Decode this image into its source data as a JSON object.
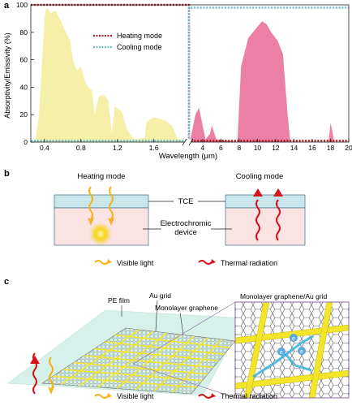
{
  "panels": {
    "a": "a",
    "b": "b",
    "c": "c"
  },
  "panel_a": {
    "ylabel": "Absorptivity/Emissivity (%)",
    "xlabel": "Wavelength (μm)",
    "yticks": [
      "0",
      "20",
      "40",
      "60",
      "80",
      "100"
    ],
    "xticks_left": [
      "0.4",
      "0.8",
      "1.2",
      "1.6"
    ],
    "xticks_right": [
      "4",
      "6",
      "8",
      "10",
      "12",
      "14",
      "16",
      "18",
      "20"
    ],
    "legend": {
      "heating": "Heating mode",
      "cooling": "Cooling mode"
    }
  },
  "colors": {
    "heating": "#b01e2a",
    "cooling": "#6dbfd0",
    "solar_fill": "#f5efa8",
    "thermal_fill": "#ec7fa6",
    "tce": "#c9e6ea",
    "device": "#fbe3e3",
    "light": "#f5b21a",
    "thermal": "#d6111b",
    "au": "#f2e52a"
  },
  "panel_b": {
    "heating_title": "Heating mode",
    "cooling_title": "Cooling mode",
    "tce_label": "TCE",
    "device_label_1": "Electrochromic",
    "device_label_2": "device",
    "legend_visible": "Visible light",
    "legend_thermal": "Thermal radiation"
  },
  "panel_c": {
    "pe_film": "PE film",
    "au_grid": "Au grid",
    "graphene": "Monolayer graphene",
    "inset_title": "Monolayer graphene/Au grid",
    "legend_visible": "Visible light",
    "legend_thermal": "Thermal radiation",
    "electron_label": "e"
  },
  "chart_data": {
    "type": "area",
    "xlabel": "Wavelength (μm)",
    "ylabel": "Absorptivity/Emissivity (%)",
    "ylim": [
      0,
      100
    ],
    "x_axis_broken": true,
    "xlim_segments": [
      [
        0.25,
        1.95
      ],
      [
        2.5,
        20
      ]
    ],
    "legend_position": "top-left",
    "grid": false,
    "series": [
      {
        "name": "Heating mode",
        "style": "dashed",
        "points": [
          [
            0.25,
            100
          ],
          [
            2.5,
            100
          ],
          [
            2.5,
            1
          ],
          [
            20,
            1
          ]
        ]
      },
      {
        "name": "Cooling mode",
        "style": "dashed",
        "points": [
          [
            0.25,
            1
          ],
          [
            2.5,
            1
          ],
          [
            2.5,
            98
          ],
          [
            20,
            98
          ]
        ]
      }
    ],
    "filled_spectra": [
      {
        "region": "solar",
        "points": [
          [
            0.3,
            0
          ],
          [
            0.34,
            20
          ],
          [
            0.4,
            90
          ],
          [
            0.42,
            98
          ],
          [
            0.47,
            94
          ],
          [
            0.52,
            96
          ],
          [
            0.58,
            88
          ],
          [
            0.62,
            82
          ],
          [
            0.68,
            74
          ],
          [
            0.72,
            58
          ],
          [
            0.76,
            52
          ],
          [
            0.8,
            55
          ],
          [
            0.84,
            45
          ],
          [
            0.88,
            40
          ],
          [
            0.92,
            38
          ],
          [
            0.95,
            20
          ],
          [
            1.0,
            34
          ],
          [
            1.06,
            34
          ],
          [
            1.1,
            30
          ],
          [
            1.14,
            6
          ],
          [
            1.17,
            26
          ],
          [
            1.25,
            22
          ],
          [
            1.3,
            10
          ],
          [
            1.38,
            2
          ],
          [
            1.5,
            3
          ],
          [
            1.52,
            15
          ],
          [
            1.6,
            18
          ],
          [
            1.72,
            16
          ],
          [
            1.8,
            12
          ],
          [
            1.86,
            2
          ],
          [
            1.95,
            2
          ]
        ]
      },
      {
        "region": "thermal",
        "points": [
          [
            2.6,
            0
          ],
          [
            3.2,
            20
          ],
          [
            3.6,
            25
          ],
          [
            4.0,
            12
          ],
          [
            4.3,
            2
          ],
          [
            4.8,
            6
          ],
          [
            5.0,
            12
          ],
          [
            5.5,
            2
          ],
          [
            7.8,
            0
          ],
          [
            8.2,
            55
          ],
          [
            9.0,
            76
          ],
          [
            10.0,
            84
          ],
          [
            10.5,
            88
          ],
          [
            11.0,
            86
          ],
          [
            11.5,
            80
          ],
          [
            12.2,
            74
          ],
          [
            12.8,
            64
          ],
          [
            13.3,
            20
          ],
          [
            13.6,
            0
          ],
          [
            17.8,
            0
          ],
          [
            18.0,
            14
          ],
          [
            18.2,
            8
          ],
          [
            18.4,
            0
          ]
        ]
      }
    ]
  }
}
